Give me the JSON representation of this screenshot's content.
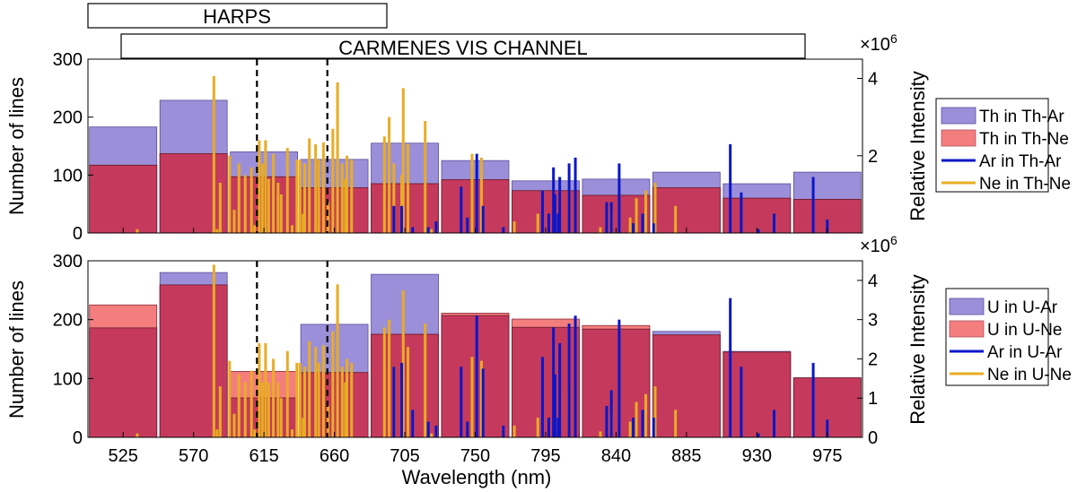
{
  "colors": {
    "th_u_bar": "#9b8fd9",
    "th_u_edge": "#5a4c9c",
    "ne_bar": "#f47e7e",
    "overlap": "#c53a5c",
    "ar_line": "#0a17c8",
    "ne_line": "#e9ac25"
  },
  "instrument_boxes": {
    "harps": "HARPS",
    "carmenes": "CARMENES VIS CHANNEL"
  },
  "chart_data": [
    {
      "type": "bar",
      "panel": "top",
      "categories": [
        "525",
        "570",
        "615",
        "660",
        "705",
        "750",
        "795",
        "840",
        "885",
        "930",
        "975"
      ],
      "x": [
        525,
        570,
        615,
        660,
        705,
        750,
        795,
        840,
        885,
        930,
        975
      ],
      "bin_width": 45,
      "series": [
        {
          "name": "Th in Th-Ar",
          "values": [
            183,
            229,
            140,
            127,
            155,
            125,
            90,
            93,
            105,
            85,
            105
          ]
        },
        {
          "name": "Th in Th-Ne",
          "values": [
            117,
            137,
            97,
            78,
            85,
            92,
            73,
            65,
            78,
            60,
            58
          ]
        }
      ],
      "ylim": [
        0,
        300
      ],
      "yticks": [
        0,
        100,
        200,
        300
      ],
      "ylabel": "Number of lines",
      "y2label": "Relative Intensity",
      "y2lim": [
        0,
        4.5
      ],
      "y2ticks": [
        2,
        4
      ],
      "y2_multiplier": "×10",
      "y2_exponent": "6",
      "xlim": [
        502.5,
        997.5
      ],
      "dashed_lines_x": [
        610.5,
        655.5
      ],
      "legend": [
        "Th in Th-Ar",
        "Th in Th-Ne",
        "Ar in Th-Ar",
        "Ne in Th-Ne"
      ],
      "emission_lines": {
        "Ar in Th-Ar": {
          "x": [
            698,
            703,
            710,
            720,
            725,
            741,
            745,
            751,
            755,
            768,
            793,
            797,
            800,
            801,
            803,
            804,
            810,
            814,
            834,
            837,
            842,
            851,
            857,
            864,
            913,
            920,
            931,
            941,
            966,
            975
          ],
          "y": [
            0.7,
            0.7,
            0.15,
            0.15,
            0.3,
            1.2,
            0.4,
            2.05,
            0.7,
            0.15,
            1.1,
            0.5,
            1.7,
            1.0,
            0.5,
            1.45,
            1.8,
            1.95,
            0.8,
            0.8,
            1.8,
            0.25,
            0.5,
            0.25,
            2.3,
            1.05,
            0.1,
            0.5,
            1.45,
            0.35
          ]
        },
        "Ne in Th-Ne": {
          "x": [
            534,
            583,
            585,
            587,
            593,
            596,
            599,
            603,
            607,
            609,
            612,
            614,
            616,
            618,
            621,
            624,
            626,
            630,
            633,
            636,
            638,
            640,
            641,
            644,
            648,
            650,
            653,
            656,
            659,
            662,
            665,
            667,
            668,
            671,
            692,
            695,
            698,
            703,
            704,
            707,
            718,
            722,
            725,
            748,
            754,
            775,
            790,
            810,
            830,
            837,
            849,
            853,
            859,
            865,
            878
          ],
          "y": [
            0.1,
            4.06,
            0.1,
            1.3,
            2.0,
            0.6,
            1.8,
            1.5,
            1.7,
            0.2,
            2.4,
            1.8,
            2.4,
            1.4,
            2.05,
            1.3,
            1.0,
            2.2,
            0.2,
            1.9,
            1.9,
            0.5,
            1.8,
            2.45,
            2.3,
            1.9,
            2.35,
            0.8,
            2.7,
            3.9,
            1.8,
            1.4,
            2.0,
            1.9,
            2.5,
            3.0,
            1.8,
            1.5,
            3.75,
            2.3,
            2.9,
            0.1,
            0.1,
            2.05,
            1.95,
            0.3,
            0.5,
            1.3,
            0.15,
            0.6,
            0.4,
            0.9,
            1.1,
            1.3,
            0.7
          ]
        }
      }
    },
    {
      "type": "bar",
      "panel": "bottom",
      "categories": [
        "525",
        "570",
        "615",
        "660",
        "705",
        "750",
        "795",
        "840",
        "885",
        "930",
        "975"
      ],
      "x": [
        525,
        570,
        615,
        660,
        705,
        750,
        795,
        840,
        885,
        930,
        975
      ],
      "bin_width": 45,
      "series": [
        {
          "name": "U in U-Ar",
          "values": [
            186,
            280,
            67,
            192,
            277,
            207,
            187,
            184,
            180,
            146,
            101
          ]
        },
        {
          "name": "U in U-Ne",
          "values": [
            225,
            259,
            112,
            110,
            175,
            211,
            201,
            190,
            174,
            145,
            101
          ]
        }
      ],
      "ylim": [
        0,
        300
      ],
      "yticks": [
        0,
        100,
        200,
        300
      ],
      "ylabel": "Number of lines",
      "y2label": "Relative Intensity",
      "y2lim": [
        0,
        4.5
      ],
      "y2ticks": [
        0,
        1,
        2,
        3,
        4
      ],
      "y2_multiplier": "×10",
      "y2_exponent": "6",
      "xlabel": "Wavelength (nm)",
      "xlim": [
        502.5,
        997.5
      ],
      "dashed_lines_x": [
        610.5,
        655.5
      ],
      "legend": [
        "U in U-Ar",
        "U in U-Ne",
        "Ar in U-Ar",
        "Ne in U-Ne"
      ],
      "emission_lines": {
        "Ar in U-Ar": {
          "x": [
            698,
            703,
            710,
            720,
            725,
            741,
            745,
            751,
            755,
            768,
            793,
            797,
            800,
            801,
            803,
            804,
            810,
            814,
            834,
            837,
            842,
            851,
            857,
            864,
            913,
            920,
            931,
            941,
            966,
            975
          ],
          "y": [
            1.8,
            1.9,
            0.7,
            0.4,
            0.3,
            1.8,
            0.4,
            3.1,
            1.75,
            0.3,
            2.05,
            0.5,
            2.8,
            1.6,
            0.5,
            2.4,
            2.9,
            3.1,
            0.8,
            1.2,
            3.0,
            0.5,
            0.7,
            0.5,
            3.55,
            1.8,
            0.1,
            0.7,
            1.9,
            0.45
          ]
        },
        "Ne in U-Ne": {
          "x": [
            534,
            583,
            585,
            587,
            593,
            596,
            599,
            603,
            607,
            609,
            612,
            614,
            616,
            618,
            621,
            624,
            626,
            630,
            633,
            636,
            638,
            640,
            641,
            644,
            648,
            650,
            653,
            656,
            659,
            662,
            665,
            667,
            668,
            671,
            692,
            695,
            698,
            703,
            704,
            707,
            718,
            722,
            725,
            748,
            754,
            775,
            790,
            810,
            830,
            837,
            849,
            853,
            859,
            865,
            878
          ],
          "y": [
            0.1,
            4.4,
            0.2,
            1.3,
            1.95,
            0.6,
            1.6,
            1.4,
            1.7,
            0.2,
            2.4,
            1.4,
            2.4,
            1.4,
            2.0,
            1.4,
            1.0,
            2.2,
            0.2,
            1.9,
            1.9,
            0.5,
            1.8,
            2.45,
            2.3,
            1.9,
            2.35,
            0.8,
            2.7,
            3.9,
            1.8,
            1.4,
            2.0,
            1.9,
            2.8,
            3.0,
            1.8,
            1.5,
            3.75,
            2.3,
            2.9,
            0.1,
            0.1,
            2.05,
            1.95,
            0.3,
            0.5,
            1.3,
            0.15,
            0.6,
            0.4,
            0.9,
            1.1,
            1.3,
            0.7
          ]
        }
      }
    }
  ]
}
